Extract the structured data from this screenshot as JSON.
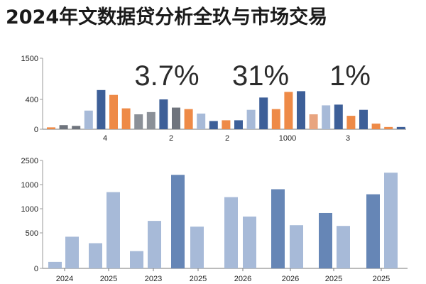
{
  "title": "2024年文数据贷分析全玖与市场交易",
  "chart_data": [
    {
      "type": "bar",
      "yticks": [
        "1500",
        "400",
        "0"
      ],
      "categories": [
        "4",
        "2",
        "2",
        "1000",
        "3"
      ],
      "annotations": [
        "3.7%",
        "31%",
        "1%"
      ],
      "bars": [
        {
          "value": 25,
          "color": "#ee8a47"
        },
        {
          "value": 55,
          "color": "#6f747d"
        },
        {
          "value": 45,
          "color": "#6f747d"
        },
        {
          "value": 250,
          "color": "#a7bad8"
        },
        {
          "value": 650,
          "color": "#3d5f98"
        },
        {
          "value": 520,
          "color": "#ee8a47"
        },
        {
          "value": 280,
          "color": "#ee8a47"
        },
        {
          "value": 200,
          "color": "#8b9098"
        },
        {
          "value": 230,
          "color": "#8b9098"
        },
        {
          "value": 400,
          "color": "#3d5f98"
        },
        {
          "value": 290,
          "color": "#6f747d"
        },
        {
          "value": 270,
          "color": "#ee8a47"
        },
        {
          "value": 210,
          "color": "#a7bad8"
        },
        {
          "value": 110,
          "color": "#3d5f98"
        },
        {
          "value": 120,
          "color": "#ee8a47"
        },
        {
          "value": 120,
          "color": "#3d5f98"
        },
        {
          "value": 260,
          "color": "#a7bad8"
        },
        {
          "value": 450,
          "color": "#3d5f98"
        },
        {
          "value": 270,
          "color": "#ee8a47"
        },
        {
          "value": 600,
          "color": "#ee8a47"
        },
        {
          "value": 620,
          "color": "#3d5f98"
        },
        {
          "value": 200,
          "color": "#e8a47f"
        },
        {
          "value": 320,
          "color": "#a7bad8"
        },
        {
          "value": 330,
          "color": "#3d5f98"
        },
        {
          "value": 180,
          "color": "#ee8a47"
        },
        {
          "value": 260,
          "color": "#3d5f98"
        },
        {
          "value": 75,
          "color": "#ee8a47"
        },
        {
          "value": 30,
          "color": "#ee8a47"
        },
        {
          "value": 30,
          "color": "#3d5f98"
        }
      ]
    },
    {
      "type": "bar",
      "yticks": [
        "2500",
        "1000",
        "1000",
        "500",
        "0"
      ],
      "categories": [
        "2024",
        "2025",
        "2023",
        "2025",
        "2026",
        "2026",
        "2025",
        "2025"
      ],
      "bars": [
        {
          "value": 90,
          "color": "#a7bad8"
        },
        {
          "value": 440,
          "color": "#a7bad8"
        },
        {
          "value": 350,
          "color": "#a7bad8"
        },
        {
          "value": 1060,
          "color": "#a7bad8"
        },
        {
          "value": 240,
          "color": "#a7bad8"
        },
        {
          "value": 660,
          "color": "#a7bad8"
        },
        {
          "value": 1300,
          "color": "#6686b6"
        },
        {
          "value": 580,
          "color": "#a7bad8"
        },
        {
          "value": 990,
          "color": "#a7bad8"
        },
        {
          "value": 720,
          "color": "#a7bad8"
        },
        {
          "value": 1100,
          "color": "#6686b6"
        },
        {
          "value": 600,
          "color": "#a7bad8"
        },
        {
          "value": 770,
          "color": "#6686b6"
        },
        {
          "value": 590,
          "color": "#a7bad8"
        },
        {
          "value": 1030,
          "color": "#6686b6"
        },
        {
          "value": 1330,
          "color": "#a7bad8"
        }
      ]
    }
  ]
}
